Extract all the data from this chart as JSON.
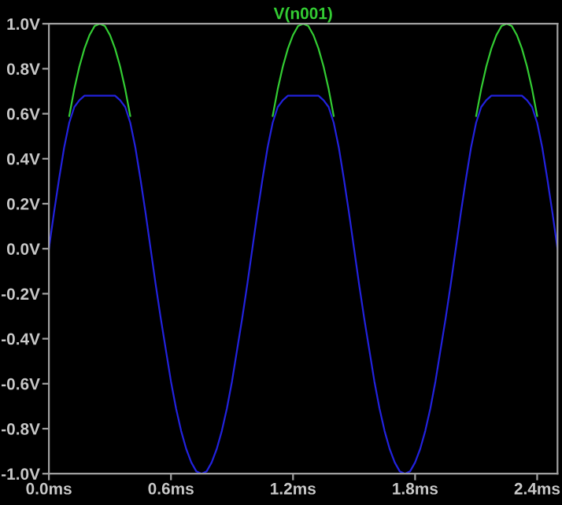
{
  "chart_data": {
    "type": "line",
    "x": [
      0,
      0.025,
      0.05,
      0.075,
      0.1,
      0.125,
      0.15,
      0.175,
      0.2,
      0.225,
      0.25,
      0.275,
      0.3,
      0.325,
      0.35,
      0.375,
      0.4,
      0.425,
      0.45,
      0.475,
      0.5,
      0.525,
      0.55,
      0.575,
      0.6,
      0.625,
      0.65,
      0.675,
      0.7,
      0.725,
      0.75,
      0.775,
      0.8,
      0.825,
      0.85,
      0.875,
      0.9,
      0.925,
      0.95,
      0.975,
      1.0,
      1.025,
      1.05,
      1.075,
      1.1,
      1.125,
      1.15,
      1.175,
      1.2,
      1.225,
      1.25,
      1.275,
      1.3,
      1.325,
      1.35,
      1.375,
      1.4,
      1.425,
      1.45,
      1.475,
      1.5,
      1.525,
      1.55,
      1.575,
      1.6,
      1.625,
      1.65,
      1.675,
      1.7,
      1.725,
      1.75,
      1.775,
      1.8,
      1.825,
      1.85,
      1.875,
      1.9,
      1.925,
      1.95,
      1.975,
      2.0,
      2.025,
      2.05,
      2.075,
      2.1,
      2.125,
      2.15,
      2.175,
      2.2,
      2.225,
      2.25,
      2.275,
      2.3,
      2.325,
      2.35,
      2.375,
      2.4,
      2.425,
      2.45,
      2.475,
      2.5
    ],
    "series": [
      {
        "name": "V(n001)",
        "color": "#33cc33",
        "values": [
          null,
          null,
          null,
          null,
          0.59,
          0.71,
          0.81,
          0.89,
          0.95,
          0.99,
          1,
          0.99,
          0.95,
          0.89,
          0.81,
          0.71,
          0.59,
          null,
          null,
          null,
          null,
          null,
          null,
          null,
          null,
          null,
          null,
          null,
          null,
          null,
          null,
          null,
          null,
          null,
          null,
          null,
          null,
          null,
          null,
          null,
          null,
          null,
          null,
          null,
          0.59,
          0.71,
          0.81,
          0.89,
          0.95,
          0.99,
          1,
          0.99,
          0.95,
          0.89,
          0.81,
          0.71,
          0.59,
          null,
          null,
          null,
          null,
          null,
          null,
          null,
          null,
          null,
          null,
          null,
          null,
          null,
          null,
          null,
          null,
          null,
          null,
          null,
          null,
          null,
          null,
          null,
          null,
          null,
          null,
          null,
          0.59,
          0.71,
          0.81,
          0.89,
          0.95,
          0.99,
          1,
          0.99,
          0.95,
          0.89,
          0.81,
          0.71,
          0.59,
          null,
          null,
          null,
          null
        ]
      },
      {
        "color": "#2222dd",
        "values": [
          0,
          0.16,
          0.31,
          0.45,
          0.56,
          0.63,
          0.66,
          0.68,
          0.68,
          0.68,
          0.68,
          0.68,
          0.68,
          0.68,
          0.66,
          0.63,
          0.56,
          0.45,
          0.31,
          0.16,
          0,
          -0.16,
          -0.31,
          -0.45,
          -0.59,
          -0.71,
          -0.81,
          -0.89,
          -0.95,
          -0.99,
          -1,
          -0.99,
          -0.95,
          -0.89,
          -0.81,
          -0.71,
          -0.59,
          -0.45,
          -0.31,
          -0.16,
          0,
          0.16,
          0.31,
          0.45,
          0.56,
          0.63,
          0.66,
          0.68,
          0.68,
          0.68,
          0.68,
          0.68,
          0.68,
          0.68,
          0.66,
          0.63,
          0.56,
          0.45,
          0.31,
          0.16,
          0,
          -0.16,
          -0.31,
          -0.45,
          -0.59,
          -0.71,
          -0.81,
          -0.89,
          -0.95,
          -0.99,
          -1,
          -0.99,
          -0.95,
          -0.89,
          -0.81,
          -0.71,
          -0.59,
          -0.45,
          -0.31,
          -0.16,
          0,
          0.16,
          0.31,
          0.45,
          0.56,
          0.63,
          0.66,
          0.68,
          0.68,
          0.68,
          0.68,
          0.68,
          0.68,
          0.68,
          0.66,
          0.63,
          0.56,
          0.45,
          0.31,
          0.16,
          0
        ]
      }
    ],
    "xlim": [
      0,
      2.5
    ],
    "ylim": [
      -1.0,
      1.0
    ],
    "xticks": [
      {
        "value": 0,
        "label": "0.0ms"
      },
      {
        "value": 0.6,
        "label": "0.6ms"
      },
      {
        "value": 1.2,
        "label": "1.2ms"
      },
      {
        "value": 1.8,
        "label": "1.8ms"
      },
      {
        "value": 2.4,
        "label": "2.4ms"
      }
    ],
    "yticks": [
      {
        "value": 1.0,
        "label": "1.0V"
      },
      {
        "value": 0.8,
        "label": "0.8V"
      },
      {
        "value": 0.6,
        "label": "0.6V"
      },
      {
        "value": 0.4,
        "label": "0.4V"
      },
      {
        "value": 0.2,
        "label": "0.2V"
      },
      {
        "value": 0.0,
        "label": "0.0V"
      },
      {
        "value": -0.2,
        "label": "-0.2V"
      },
      {
        "value": -0.4,
        "label": "-0.4V"
      },
      {
        "value": -0.6,
        "label": "-0.6V"
      },
      {
        "value": -0.8,
        "label": "-0.8V"
      },
      {
        "value": -1.0,
        "label": "-1.0V"
      }
    ],
    "grid": false,
    "legend": "top",
    "line_style": "solid"
  }
}
